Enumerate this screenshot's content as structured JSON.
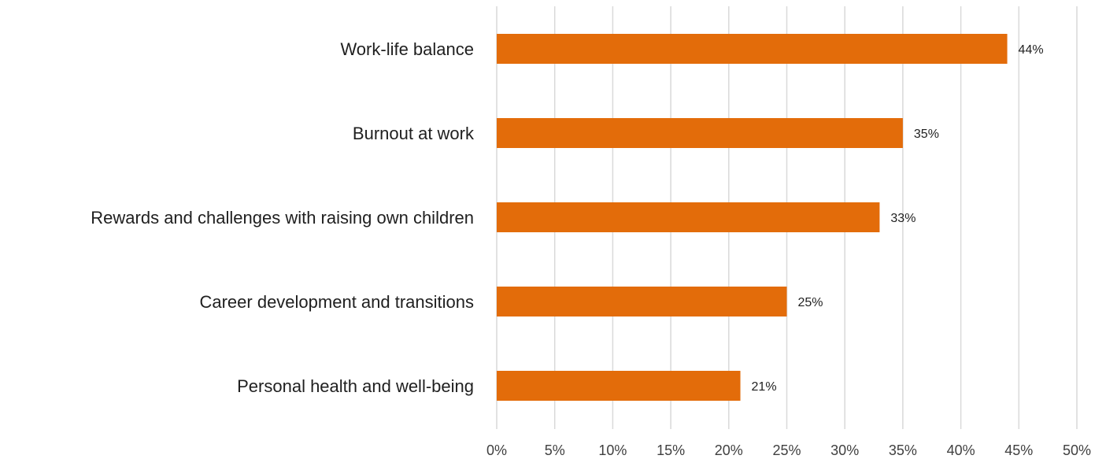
{
  "chart_data": {
    "type": "bar",
    "orientation": "horizontal",
    "categories": [
      "Work-life balance",
      "Burnout at work",
      "Rewards and challenges with raising own children",
      "Career development and transitions",
      "Personal health and well-being"
    ],
    "values": [
      44,
      35,
      33,
      25,
      21
    ],
    "value_labels": [
      "44%",
      "35%",
      "33%",
      "25%",
      "21%"
    ],
    "xlim": [
      0,
      50
    ],
    "x_ticks": [
      "0%",
      "5%",
      "10%",
      "15%",
      "20%",
      "25%",
      "30%",
      "35%",
      "40%",
      "45%",
      "50%"
    ],
    "grid": true,
    "bar_color": "#E36C0A"
  }
}
